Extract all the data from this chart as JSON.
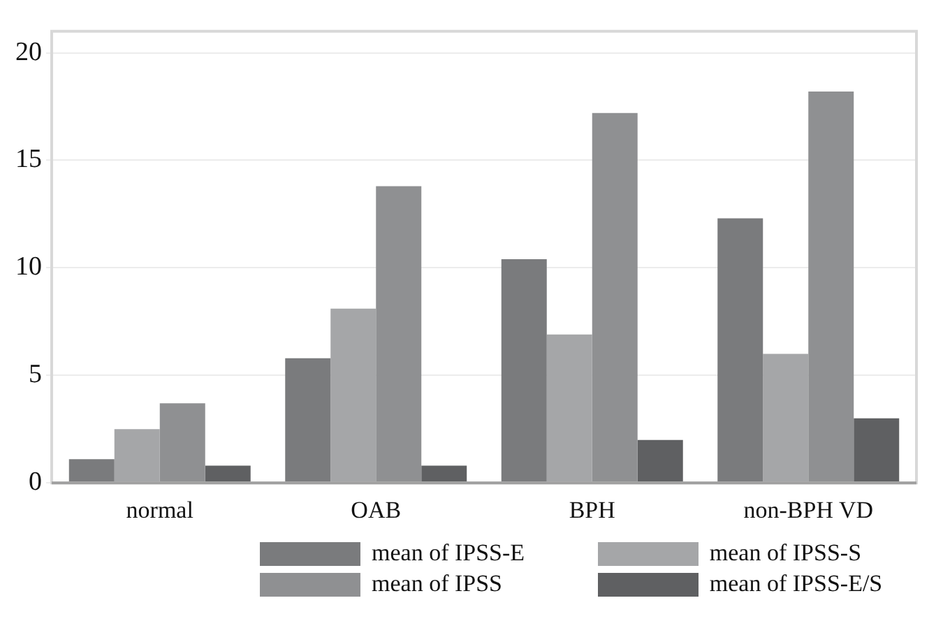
{
  "chart_data": {
    "type": "bar",
    "categories": [
      "normal",
      "OAB",
      "BPH",
      "non-BPH VD"
    ],
    "series": [
      {
        "name": "mean of IPSS-E",
        "color": "#7a7b7d",
        "values": [
          1.1,
          5.8,
          10.4,
          12.3
        ]
      },
      {
        "name": "mean of IPSS-S",
        "color": "#a5a6a8",
        "values": [
          2.5,
          8.1,
          6.9,
          6.0
        ]
      },
      {
        "name": "mean of IPSS",
        "color": "#8f9092",
        "values": [
          3.7,
          13.8,
          17.2,
          18.2
        ]
      },
      {
        "name": "mean of IPSS-E/S",
        "color": "#5f6062",
        "values": [
          0.8,
          0.8,
          2.0,
          3.0
        ]
      }
    ],
    "ylim": [
      0,
      21
    ],
    "yticks": [
      0,
      5,
      10,
      15,
      20
    ],
    "grid": "y",
    "legend": "bottom"
  }
}
